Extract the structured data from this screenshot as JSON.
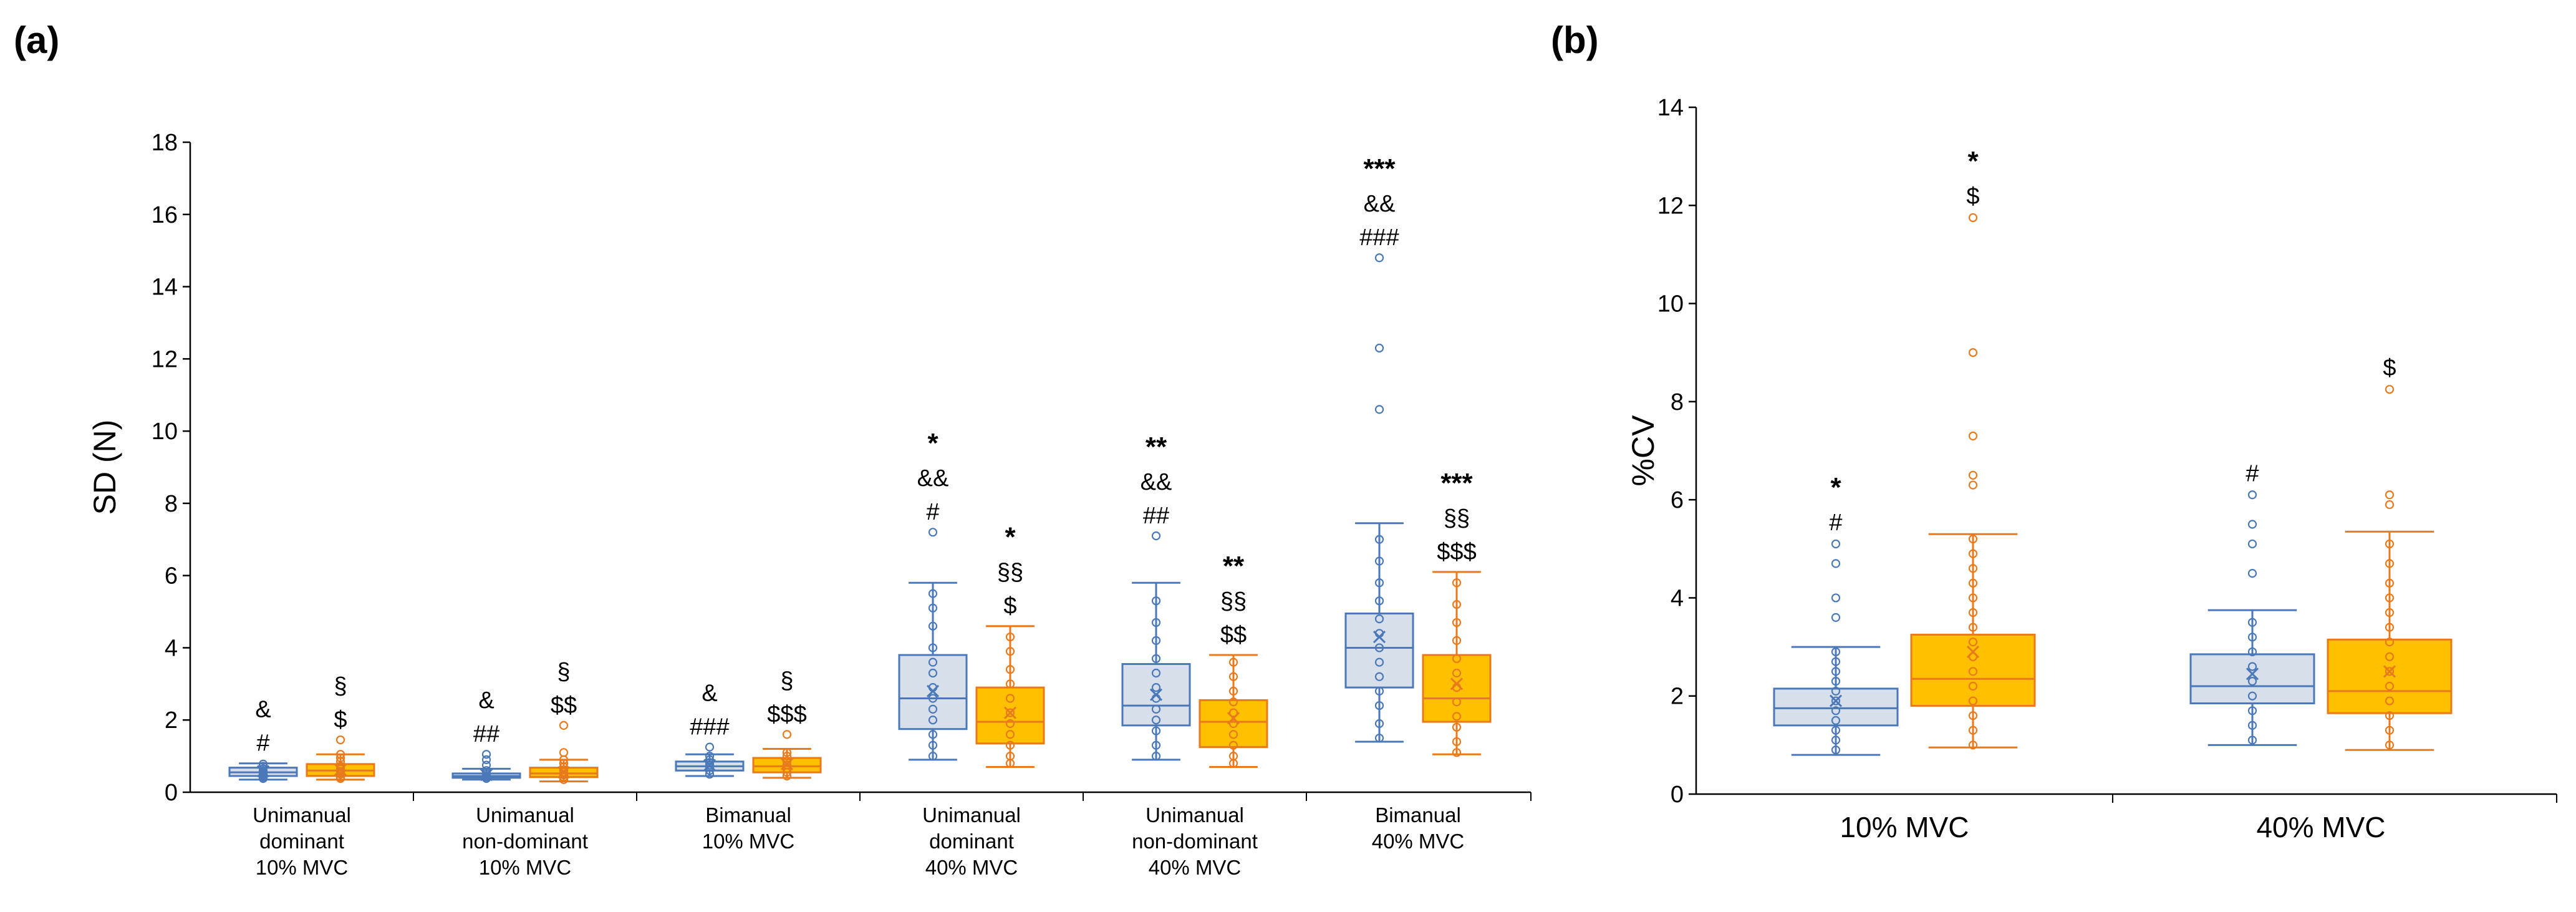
{
  "colors": {
    "group1_fill": "#d6dfea",
    "group1_stroke": "#4a78b8",
    "group2_fill": "#ffc000",
    "group2_stroke": "#e87a1c",
    "axis": "#000000"
  },
  "chart_data": [
    {
      "id": "a",
      "type": "box",
      "panel_label": "(a)",
      "ylabel": "SD (N)",
      "ylim": [
        0,
        18
      ],
      "yticks": [
        0,
        2,
        4,
        6,
        8,
        10,
        12,
        14,
        16,
        18
      ],
      "groups": [
        {
          "label": [
            "Unimanual",
            "dominant",
            "10% MVC"
          ],
          "boxes": [
            {
              "series": 0,
              "min": 0.35,
              "q1": 0.45,
              "median": 0.55,
              "q3": 0.68,
              "max": 0.8,
              "mean": 0.58,
              "points": [
                0.38,
                0.42,
                0.48,
                0.5,
                0.55,
                0.6,
                0.65,
                0.72,
                0.78
              ],
              "outliers": [],
              "annotations": [
                "&",
                "#"
              ]
            },
            {
              "series": 1,
              "min": 0.35,
              "q1": 0.45,
              "median": 0.6,
              "q3": 0.78,
              "max": 1.05,
              "mean": 0.62,
              "points": [
                0.38,
                0.42,
                0.5,
                0.58,
                0.65,
                0.72,
                0.85,
                0.95,
                1.05
              ],
              "outliers": [
                1.45
              ],
              "annotations": [
                "§",
                "$"
              ]
            }
          ]
        },
        {
          "label": [
            "Unimanual",
            "non-dominant",
            "10% MVC"
          ],
          "boxes": [
            {
              "series": 0,
              "min": 0.35,
              "q1": 0.4,
              "median": 0.45,
              "q3": 0.52,
              "max": 0.65,
              "mean": 0.48,
              "points": [
                0.38,
                0.42,
                0.45,
                0.5,
                0.55,
                0.6
              ],
              "outliers": [
                0.75,
                0.9,
                1.05
              ],
              "annotations": [
                "&",
                "##"
              ]
            },
            {
              "series": 1,
              "min": 0.3,
              "q1": 0.42,
              "median": 0.52,
              "q3": 0.68,
              "max": 0.9,
              "mean": 0.55,
              "points": [
                0.35,
                0.42,
                0.48,
                0.55,
                0.62,
                0.7,
                0.8,
                0.9
              ],
              "outliers": [
                1.1,
                1.85
              ],
              "annotations": [
                "§",
                "$$"
              ]
            }
          ]
        },
        {
          "label": [
            "Bimanual",
            "10% MVC"
          ],
          "boxes": [
            {
              "series": 0,
              "min": 0.45,
              "q1": 0.6,
              "median": 0.72,
              "q3": 0.85,
              "max": 1.05,
              "mean": 0.75,
              "points": [
                0.5,
                0.6,
                0.7,
                0.75,
                0.82,
                0.9,
                1.0
              ],
              "outliers": [
                1.25
              ],
              "annotations": [
                "&",
                "###"
              ]
            },
            {
              "series": 1,
              "min": 0.4,
              "q1": 0.55,
              "median": 0.72,
              "q3": 0.95,
              "max": 1.2,
              "mean": 0.78,
              "points": [
                0.45,
                0.55,
                0.65,
                0.75,
                0.85,
                1.0,
                1.1
              ],
              "outliers": [
                1.6
              ],
              "annotations": [
                "§",
                "$$$"
              ]
            }
          ]
        },
        {
          "label": [
            "Unimanual",
            "dominant",
            "40% MVC"
          ],
          "boxes": [
            {
              "series": 0,
              "min": 0.9,
              "q1": 1.75,
              "median": 2.6,
              "q3": 3.8,
              "max": 5.8,
              "mean": 2.8,
              "points": [
                1.0,
                1.3,
                1.6,
                2.0,
                2.3,
                2.6,
                2.9,
                3.3,
                3.6,
                4.0,
                4.6,
                5.1,
                5.5
              ],
              "outliers": [
                7.2
              ],
              "annotations": [
                "*",
                "&&",
                "#"
              ]
            },
            {
              "series": 1,
              "min": 0.7,
              "q1": 1.35,
              "median": 1.95,
              "q3": 2.9,
              "max": 4.6,
              "mean": 2.2,
              "points": [
                0.8,
                1.0,
                1.3,
                1.6,
                1.9,
                2.2,
                2.6,
                3.0,
                3.4,
                3.9,
                4.3
              ],
              "outliers": [],
              "annotations": [
                "*",
                "§§",
                "$"
              ]
            }
          ]
        },
        {
          "label": [
            "Unimanual",
            "non-dominant",
            "40% MVC"
          ],
          "boxes": [
            {
              "series": 0,
              "min": 0.9,
              "q1": 1.85,
              "median": 2.4,
              "q3": 3.55,
              "max": 5.8,
              "mean": 2.7,
              "points": [
                1.0,
                1.3,
                1.7,
                2.0,
                2.3,
                2.6,
                2.9,
                3.3,
                3.7,
                4.2,
                4.7,
                5.3
              ],
              "outliers": [
                7.1
              ],
              "annotations": [
                "**",
                "&&",
                "##"
              ]
            },
            {
              "series": 1,
              "min": 0.7,
              "q1": 1.25,
              "median": 1.95,
              "q3": 2.55,
              "max": 3.8,
              "mean": 2.05,
              "points": [
                0.8,
                1.0,
                1.3,
                1.6,
                1.9,
                2.2,
                2.5,
                2.8,
                3.2,
                3.6
              ],
              "outliers": [],
              "annotations": [
                "**",
                "§§",
                "$$"
              ]
            }
          ]
        },
        {
          "label": [
            "Bimanual",
            "40% MVC"
          ],
          "boxes": [
            {
              "series": 0,
              "min": 1.4,
              "q1": 2.9,
              "median": 4.0,
              "q3": 4.95,
              "max": 7.45,
              "mean": 4.3,
              "points": [
                1.5,
                1.9,
                2.4,
                2.8,
                3.2,
                3.6,
                4.0,
                4.4,
                4.8,
                5.3,
                5.8,
                6.4,
                7.0
              ],
              "outliers": [
                10.6,
                12.3,
                14.8
              ],
              "annotations": [
                "***",
                "&&",
                "###"
              ]
            },
            {
              "series": 1,
              "min": 1.05,
              "q1": 1.95,
              "median": 2.6,
              "q3": 3.8,
              "max": 6.1,
              "mean": 3.0,
              "points": [
                1.1,
                1.4,
                1.8,
                2.1,
                2.5,
                2.9,
                3.3,
                3.7,
                4.2,
                4.7,
                5.2,
                5.8
              ],
              "outliers": [],
              "annotations": [
                "***",
                "§§",
                "$$$"
              ]
            }
          ]
        }
      ]
    },
    {
      "id": "b",
      "type": "box",
      "panel_label": "(b)",
      "ylabel": "%CV",
      "ylim": [
        0,
        14
      ],
      "yticks": [
        0,
        2,
        4,
        6,
        8,
        10,
        12,
        14
      ],
      "groups": [
        {
          "label": [
            "10% MVC"
          ],
          "boxes": [
            {
              "series": 0,
              "min": 0.8,
              "q1": 1.4,
              "median": 1.75,
              "q3": 2.15,
              "max": 3.0,
              "mean": 1.9,
              "points": [
                0.9,
                1.1,
                1.3,
                1.5,
                1.7,
                1.9,
                2.1,
                2.3,
                2.5,
                2.7,
                2.9
              ],
              "outliers": [
                3.6,
                4.0,
                4.7,
                5.1
              ],
              "annotations": [
                "*",
                "#"
              ]
            },
            {
              "series": 1,
              "min": 0.95,
              "q1": 1.8,
              "median": 2.35,
              "q3": 3.25,
              "max": 5.3,
              "mean": 2.9,
              "points": [
                1.0,
                1.3,
                1.6,
                1.9,
                2.2,
                2.5,
                2.8,
                3.1,
                3.4,
                3.7,
                4.0,
                4.3,
                4.6,
                4.9,
                5.2
              ],
              "outliers": [
                6.3,
                6.5,
                7.3,
                9.0,
                11.75
              ],
              "annotations": [
                "*",
                "$"
              ]
            }
          ]
        },
        {
          "label": [
            "40% MVC"
          ],
          "boxes": [
            {
              "series": 0,
              "min": 1.0,
              "q1": 1.85,
              "median": 2.2,
              "q3": 2.85,
              "max": 3.75,
              "mean": 2.45,
              "points": [
                1.1,
                1.4,
                1.7,
                2.0,
                2.3,
                2.6,
                2.9,
                3.2,
                3.5
              ],
              "outliers": [
                4.5,
                5.1,
                5.5,
                6.1
              ],
              "annotations": [
                "#"
              ]
            },
            {
              "series": 1,
              "min": 0.9,
              "q1": 1.65,
              "median": 2.1,
              "q3": 3.15,
              "max": 5.35,
              "mean": 2.5,
              "points": [
                1.0,
                1.3,
                1.6,
                1.9,
                2.2,
                2.5,
                2.8,
                3.1,
                3.4,
                3.7,
                4.0,
                4.3,
                4.7,
                5.1
              ],
              "outliers": [
                5.9,
                6.1,
                8.25
              ],
              "annotations": [
                "$"
              ]
            }
          ]
        }
      ]
    }
  ]
}
